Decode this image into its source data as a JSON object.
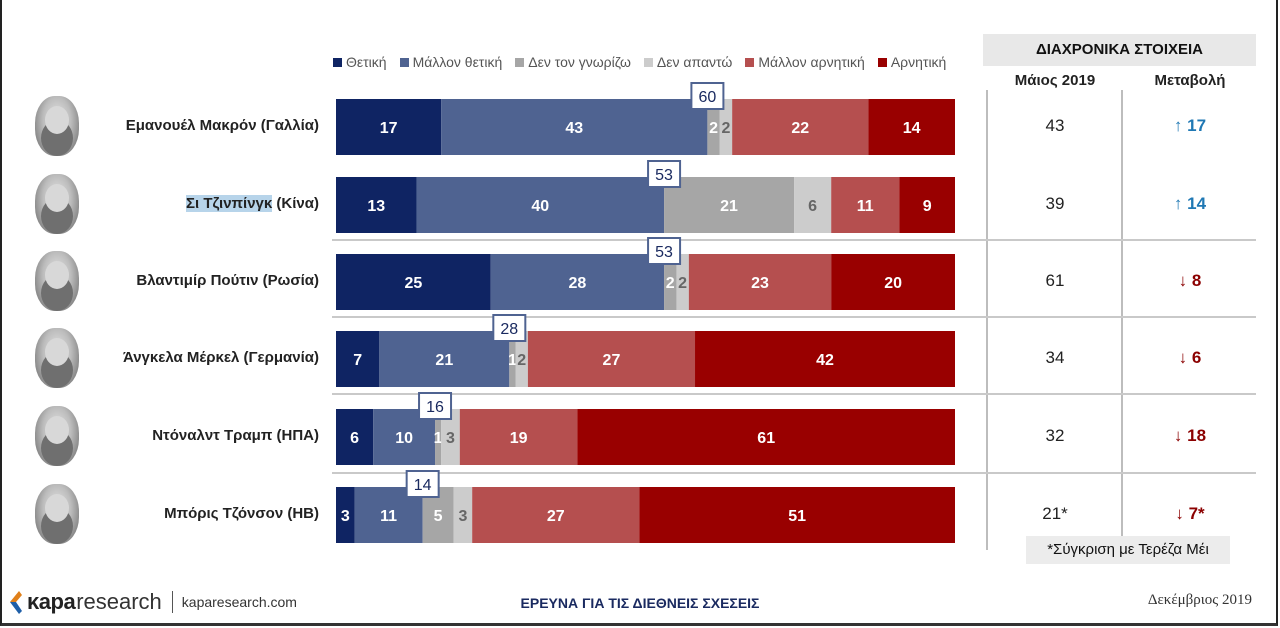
{
  "legend": [
    {
      "label": "Θετική",
      "color": "#0f2463"
    },
    {
      "label": "Μάλλον θετική",
      "color": "#4f6391"
    },
    {
      "label": "Δεν τον γνωρίζω",
      "color": "#a6a6a6"
    },
    {
      "label": "Δεν απαντώ",
      "color": "#cccccc"
    },
    {
      "label": "Μάλλον αρνητική",
      "color": "#b54f4f"
    },
    {
      "label": "Αρνητική",
      "color": "#990000"
    }
  ],
  "trend": {
    "header": "ΔΙΑΧΡΟΝΙΚΑ ΣΤΟΙΧΕΙΑ",
    "col_may": "Μάιος 2019",
    "col_change": "Μεταβολή",
    "footnote": "*Σύγκριση με Τερέζα Μέι",
    "up_color": "#1f78b4",
    "down_color": "#8b0000"
  },
  "rows": [
    {
      "name": "Εμανουέλ Μακρόν (Γαλλία)",
      "highlight": "",
      "rest": "",
      "may": "43",
      "dir": "up",
      "change": "17"
    },
    {
      "name": "",
      "highlight": "Σι Τζινπίνγκ",
      "rest": " (Κίνα)",
      "may": "39",
      "dir": "up",
      "change": "14"
    },
    {
      "name": "Βλαντιμίρ Πούτιν (Ρωσία)",
      "highlight": "",
      "rest": "",
      "may": "61",
      "dir": "down",
      "change": "8"
    },
    {
      "name": "Άνγκελα Μέρκελ (Γερμανία)",
      "highlight": "",
      "rest": "",
      "may": "34",
      "dir": "down",
      "change": "6"
    },
    {
      "name": "Ντόναλντ Τραμπ (ΗΠΑ)",
      "highlight": "",
      "rest": "",
      "may": "32",
      "dir": "down",
      "change": "18"
    },
    {
      "name": "Μπόρις Τζόνσον (ΗΒ)",
      "highlight": "",
      "rest": "",
      "may": "21*",
      "dir": "down",
      "change": "7*"
    }
  ],
  "chart_data": {
    "type": "bar",
    "orientation": "horizontal-stacked-100",
    "categories": [
      "Εμανουέλ Μακρόν (Γαλλία)",
      "Σι Τζινπίνγκ (Κίνα)",
      "Βλαντιμίρ Πούτιν (Ρωσία)",
      "Άνγκελα Μέρκελ (Γερμανία)",
      "Ντόναλντ Τραμπ (ΗΠΑ)",
      "Μπόρις Τζόνσον (ΗΒ)"
    ],
    "series": [
      {
        "name": "Θετική",
        "values": [
          17,
          13,
          25,
          7,
          6,
          3
        ]
      },
      {
        "name": "Μάλλον θετική",
        "values": [
          43,
          40,
          28,
          21,
          10,
          11
        ]
      },
      {
        "name": "Δεν τον γνωρίζω",
        "values": [
          2,
          21,
          2,
          1,
          1,
          5
        ]
      },
      {
        "name": "Δεν απαντώ",
        "values": [
          2,
          6,
          2,
          2,
          3,
          3
        ]
      },
      {
        "name": "Μάλλον αρνητική",
        "values": [
          22,
          11,
          23,
          27,
          19,
          27
        ]
      },
      {
        "name": "Αρνητική",
        "values": [
          14,
          9,
          20,
          42,
          61,
          51
        ]
      }
    ],
    "positive_totals": [
      60,
      53,
      53,
      28,
      16,
      14
    ]
  },
  "footer": {
    "logo_kapa": "κapa",
    "logo_research": "research",
    "site": "kaparesearch.com",
    "title": "ΕΡΕΥΝΑ ΓΙΑ ΤΙΣ ΔΙΕΘΝΕΙΣ ΣΧΕΣΕΙΣ",
    "date": "Δεκέμβριος 2019"
  }
}
